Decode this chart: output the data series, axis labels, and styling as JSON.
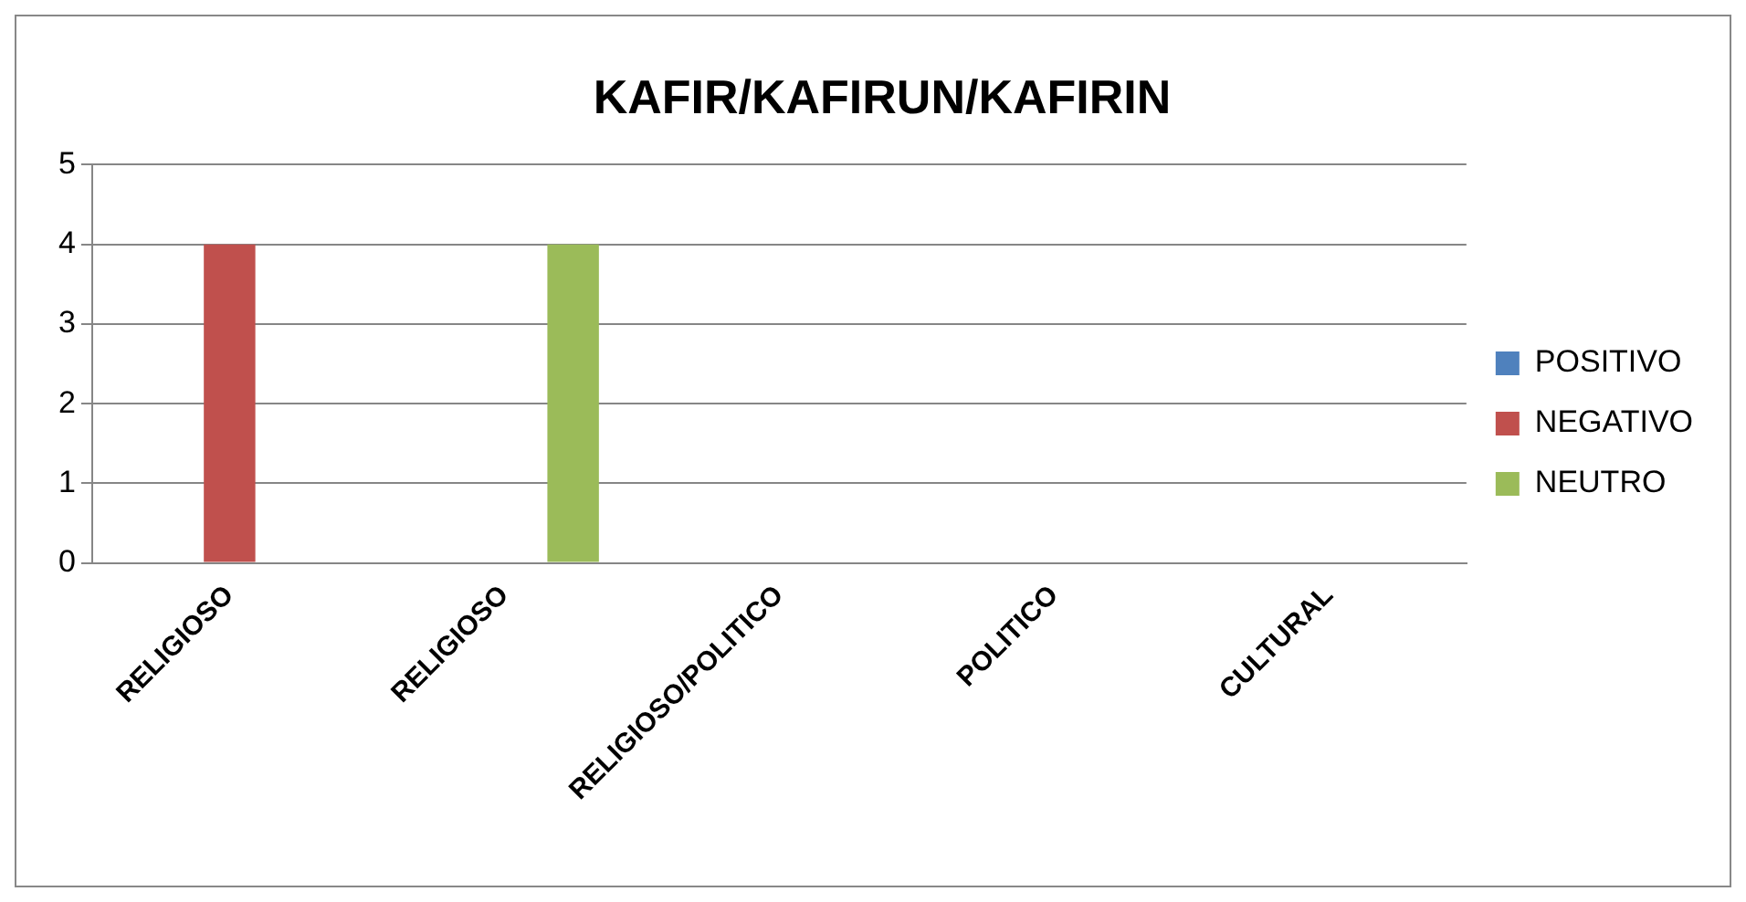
{
  "chart_data": {
    "type": "bar",
    "title": "KAFIR/KAFIRUN/KAFIRIN",
    "categories": [
      "RELIGIOSO",
      "RELIGIOSO",
      "RELIGIOSO/POLITICO",
      "POLITICO",
      "CULTURAL"
    ],
    "series": [
      {
        "name": "POSITIVO",
        "color": "#4f81bd",
        "values": [
          0,
          0,
          0,
          0,
          0
        ]
      },
      {
        "name": "NEGATIVO",
        "color": "#c0504d",
        "values": [
          4,
          0,
          0,
          0,
          0
        ]
      },
      {
        "name": "NEUTRO",
        "color": "#9bbb59",
        "values": [
          0,
          4,
          0,
          0,
          0
        ]
      }
    ],
    "ylim": [
      0,
      5
    ],
    "yticks": [
      0,
      1,
      2,
      3,
      4,
      5
    ],
    "grid": "y",
    "legend": "right"
  }
}
